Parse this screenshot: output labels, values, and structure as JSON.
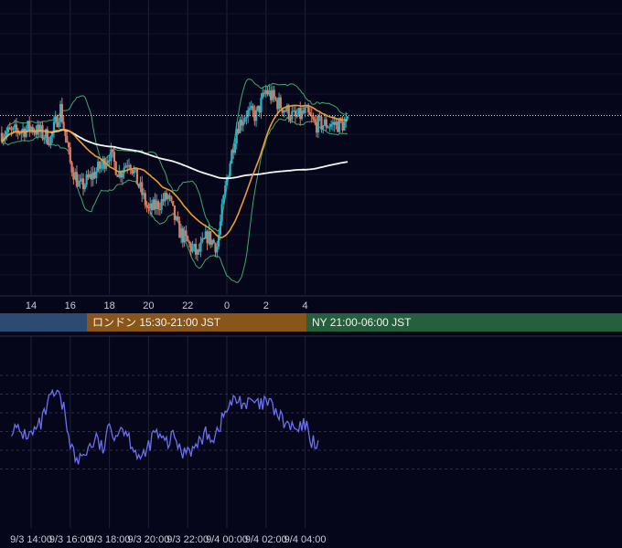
{
  "colors": {
    "background": "#050619",
    "up": "#27b3c8",
    "down": "#e07a5f",
    "bollinger": "#3ea86a",
    "ma_short": "#f19a2c",
    "ma_long": "#f4f4f4",
    "oscillator": "#6b6ff0",
    "grid": "#1e2236"
  },
  "sessions": [
    {
      "name": "tokyo",
      "label": "",
      "color": "#2c4b73"
    },
    {
      "name": "london",
      "label": "ロンドン 15:30-21:00 JST",
      "color": "#8a5518"
    },
    {
      "name": "newyork",
      "label": "NY 21:00-06:00 JST",
      "color": "#25603c"
    }
  ],
  "chart_data": [
    {
      "type": "candlestick",
      "title": "",
      "x_ticks": [
        "14",
        "16",
        "18",
        "20",
        "22",
        "0",
        "2",
        "4"
      ],
      "indicators": [
        "Bollinger Bands",
        "Moving Average (short)",
        "Moving Average (long)",
        "Dotted reference level"
      ],
      "grid": true,
      "legend": "none",
      "anchor_closes": [
        {
          "t": "9/3 13:00",
          "close": 0.66
        },
        {
          "t": "9/3 14:00",
          "close": 0.7
        },
        {
          "t": "9/3 15:00",
          "close": 0.62
        },
        {
          "t": "9/3 15:30",
          "close": 0.83
        },
        {
          "t": "9/3 16:00",
          "close": 0.45
        },
        {
          "t": "9/3 16:30",
          "close": 0.28
        },
        {
          "t": "9/3 17:30",
          "close": 0.42
        },
        {
          "t": "9/3 18:00",
          "close": 0.52
        },
        {
          "t": "9/3 18:30",
          "close": 0.38
        },
        {
          "t": "9/3 19:00",
          "close": 0.48
        },
        {
          "t": "9/3 19:30",
          "close": 0.3
        },
        {
          "t": "9/3 20:00",
          "close": 0.12
        },
        {
          "t": "9/3 21:00",
          "close": 0.22
        },
        {
          "t": "9/3 21:30",
          "close": 0.0
        },
        {
          "t": "9/3 22:00",
          "close": -0.1
        },
        {
          "t": "9/3 22:30",
          "close": -0.18
        },
        {
          "t": "9/3 23:00",
          "close": -0.05
        },
        {
          "t": "9/3 23:30",
          "close": -0.12
        },
        {
          "t": "9/4 00:00",
          "close": 0.35
        },
        {
          "t": "9/4 00:30",
          "close": 0.7
        },
        {
          "t": "9/4 01:00",
          "close": 0.8
        },
        {
          "t": "9/4 01:30",
          "close": 0.78
        },
        {
          "t": "9/4 02:00",
          "close": 0.95
        },
        {
          "t": "9/4 02:30",
          "close": 0.88
        },
        {
          "t": "9/4 03:00",
          "close": 0.82
        },
        {
          "t": "9/4 03:30",
          "close": 0.76
        },
        {
          "t": "9/4 04:00",
          "close": 0.8
        },
        {
          "t": "9/4 04:30",
          "close": 0.72
        }
      ]
    },
    {
      "type": "line",
      "title": "",
      "x_ticks": [
        "9/3 14:00",
        "9/3 16:00",
        "9/3 18:00",
        "9/3 20:00",
        "9/3 22:00",
        "9/4 00:00",
        "9/4 02:00",
        "9/4 04:00"
      ],
      "grid": true,
      "legend": "none",
      "series": [
        {
          "name": "",
          "points": [
            {
              "t": "9/3 13:00",
              "v": 52
            },
            {
              "t": "9/3 13:30",
              "v": 49
            },
            {
              "t": "9/3 14:00",
              "v": 48
            },
            {
              "t": "9/3 14:30",
              "v": 54
            },
            {
              "t": "9/3 15:00",
              "v": 68
            },
            {
              "t": "9/3 15:20",
              "v": 70
            },
            {
              "t": "9/3 15:40",
              "v": 62
            },
            {
              "t": "9/3 16:00",
              "v": 45
            },
            {
              "t": "9/3 16:20",
              "v": 33
            },
            {
              "t": "9/3 16:40",
              "v": 38
            },
            {
              "t": "9/3 17:00",
              "v": 42
            },
            {
              "t": "9/3 17:20",
              "v": 46
            },
            {
              "t": "9/3 17:40",
              "v": 40
            },
            {
              "t": "9/3 18:00",
              "v": 52
            },
            {
              "t": "9/3 18:20",
              "v": 49
            },
            {
              "t": "9/3 18:40",
              "v": 53
            },
            {
              "t": "9/3 19:00",
              "v": 47
            },
            {
              "t": "9/3 19:20",
              "v": 40
            },
            {
              "t": "9/3 19:40",
              "v": 34
            },
            {
              "t": "9/3 20:00",
              "v": 42
            },
            {
              "t": "9/3 20:20",
              "v": 50
            },
            {
              "t": "9/3 20:40",
              "v": 45
            },
            {
              "t": "9/3 21:00",
              "v": 44
            },
            {
              "t": "9/3 21:20",
              "v": 48
            },
            {
              "t": "9/3 21:40",
              "v": 38
            },
            {
              "t": "9/3 22:00",
              "v": 42
            },
            {
              "t": "9/3 22:20",
              "v": 40
            },
            {
              "t": "9/3 22:40",
              "v": 46
            },
            {
              "t": "9/3 23:00",
              "v": 49
            },
            {
              "t": "9/3 23:20",
              "v": 47
            },
            {
              "t": "9/3 23:40",
              "v": 54
            },
            {
              "t": "9/4 00:00",
              "v": 62
            },
            {
              "t": "9/4 00:20",
              "v": 66
            },
            {
              "t": "9/4 00:40",
              "v": 67
            },
            {
              "t": "9/4 01:00",
              "v": 64
            },
            {
              "t": "9/4 01:20",
              "v": 66
            },
            {
              "t": "9/4 01:40",
              "v": 63
            },
            {
              "t": "9/4 02:00",
              "v": 66
            },
            {
              "t": "9/4 02:20",
              "v": 63
            },
            {
              "t": "9/4 02:40",
              "v": 58
            },
            {
              "t": "9/4 03:00",
              "v": 54
            },
            {
              "t": "9/4 03:20",
              "v": 52
            },
            {
              "t": "9/4 03:40",
              "v": 50
            },
            {
              "t": "9/4 04:00",
              "v": 54
            },
            {
              "t": "9/4 04:20",
              "v": 45
            },
            {
              "t": "9/4 04:40",
              "v": 44
            }
          ]
        }
      ]
    }
  ]
}
